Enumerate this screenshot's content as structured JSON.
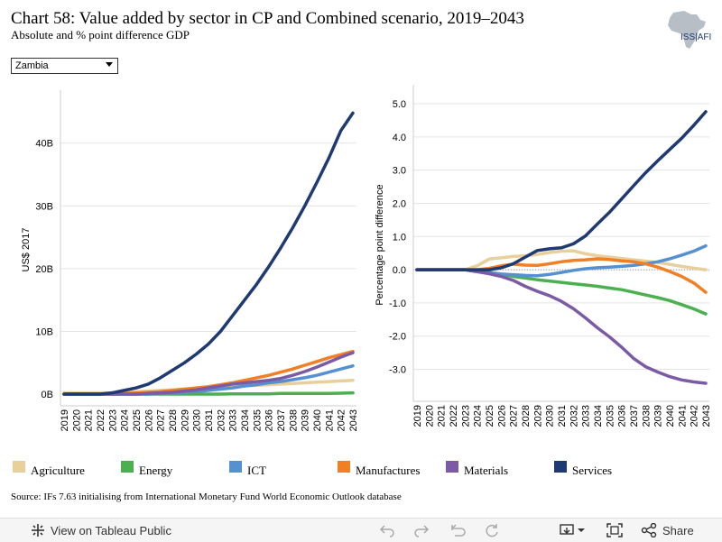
{
  "header": {
    "title": "Chart 58: Value added by sector in CP and Combined scenario, 2019–2043",
    "subtitle": "Absolute and % point difference GDP",
    "logo_text": "ISS|AFI"
  },
  "filter": {
    "country": "Zambia"
  },
  "colors": {
    "Agriculture": "#e8cf9b",
    "Energy": "#4caf50",
    "ICT": "#5591d1",
    "Manufactures": "#f07f26",
    "Materials": "#7b5aa6",
    "Services": "#1f3a73"
  },
  "legend": [
    "Agriculture",
    "Energy",
    "ICT",
    "Manufactures",
    "Materials",
    "Services"
  ],
  "source": "Source: IFs 7.63 initialising from International Monetary Fund World Economic Outlook database",
  "toolbar": {
    "view_label": "View on Tableau Public",
    "share_label": "Share"
  },
  "chart_data": [
    {
      "type": "line",
      "title": "",
      "xlabel": "",
      "ylabel": "US$ 2017",
      "x": [
        "2019",
        "2020",
        "2021",
        "2022",
        "2023",
        "2024",
        "2025",
        "2026",
        "2027",
        "2028",
        "2029",
        "2030",
        "2031",
        "2032",
        "2033",
        "2034",
        "2035",
        "2036",
        "2037",
        "2038",
        "2039",
        "2040",
        "2041",
        "2042",
        "2043"
      ],
      "ylim": [
        -1,
        47
      ],
      "yticks": [
        0,
        10,
        20,
        30,
        40
      ],
      "ytick_labels": [
        "0B",
        "10B",
        "20B",
        "30B",
        "40B"
      ],
      "gridlines": true,
      "series": [
        {
          "name": "Agriculture",
          "values": [
            0.2,
            0.2,
            0.2,
            0.2,
            0.2,
            0.3,
            0.4,
            0.5,
            0.6,
            0.7,
            0.8,
            0.9,
            1.0,
            1.1,
            1.2,
            1.3,
            1.4,
            1.5,
            1.6,
            1.7,
            1.8,
            1.9,
            2.0,
            2.1,
            2.2
          ]
        },
        {
          "name": "Energy",
          "values": [
            0.0,
            0.0,
            0.0,
            0.0,
            0.0,
            0.0,
            0.0,
            0.0,
            0.0,
            0.0,
            0.0,
            0.0,
            0.0,
            0.0,
            0.05,
            0.05,
            0.05,
            0.05,
            0.1,
            0.1,
            0.1,
            0.1,
            0.1,
            0.15,
            0.2
          ]
        },
        {
          "name": "ICT",
          "values": [
            0.0,
            0.0,
            0.0,
            0.0,
            0.0,
            0.0,
            0.0,
            0.0,
            0.1,
            0.2,
            0.3,
            0.4,
            0.6,
            0.8,
            1.0,
            1.3,
            1.5,
            1.8,
            2.0,
            2.3,
            2.6,
            3.0,
            3.5,
            4.0,
            4.5
          ]
        },
        {
          "name": "Manufactures",
          "values": [
            0.0,
            0.0,
            0.0,
            0.0,
            0.0,
            0.1,
            0.2,
            0.3,
            0.4,
            0.6,
            0.8,
            1.0,
            1.2,
            1.5,
            1.8,
            2.2,
            2.6,
            3.0,
            3.5,
            4.0,
            4.6,
            5.2,
            5.8,
            6.3,
            6.8
          ]
        },
        {
          "name": "Materials",
          "values": [
            0.0,
            0.0,
            0.0,
            0.0,
            0.0,
            0.0,
            0.0,
            0.1,
            0.2,
            0.3,
            0.5,
            0.7,
            1.0,
            1.3,
            1.6,
            1.8,
            2.0,
            2.2,
            2.5,
            3.0,
            3.6,
            4.3,
            5.1,
            5.9,
            6.6
          ]
        },
        {
          "name": "Services",
          "values": [
            0.0,
            0.0,
            0.0,
            0.0,
            0.2,
            0.6,
            1.0,
            1.6,
            2.6,
            3.8,
            5.0,
            6.4,
            8.0,
            10.0,
            12.5,
            15.0,
            17.5,
            20.3,
            23.3,
            26.5,
            30.0,
            33.7,
            37.6,
            42.0,
            44.8
          ]
        }
      ]
    },
    {
      "type": "line",
      "title": "",
      "xlabel": "",
      "ylabel": "Percentage point difference",
      "x": [
        "2019",
        "2020",
        "2021",
        "2022",
        "2023",
        "2024",
        "2025",
        "2026",
        "2027",
        "2028",
        "2029",
        "2030",
        "2031",
        "2032",
        "2033",
        "2034",
        "2035",
        "2036",
        "2037",
        "2038",
        "2039",
        "2040",
        "2041",
        "2042",
        "2043"
      ],
      "ylim": [
        -3.8,
        5.3
      ],
      "yticks": [
        -3,
        -2,
        -1,
        0,
        1,
        2,
        3,
        4,
        5
      ],
      "ytick_labels": [
        "-3.0",
        "-2.0",
        "-1.0",
        "0.0",
        "1.0",
        "2.0",
        "3.0",
        "4.0",
        "5.0"
      ],
      "gridlines": true,
      "reference_line": 0,
      "series": [
        {
          "name": "Agriculture",
          "values": [
            0.0,
            0.0,
            0.0,
            0.0,
            0.0,
            0.12,
            0.32,
            0.36,
            0.4,
            0.42,
            0.46,
            0.52,
            0.56,
            0.57,
            0.48,
            0.42,
            0.38,
            0.34,
            0.3,
            0.26,
            0.22,
            0.16,
            0.1,
            0.05,
            0.0
          ]
        },
        {
          "name": "Energy",
          "values": [
            0.0,
            0.0,
            0.0,
            0.0,
            0.0,
            -0.04,
            -0.08,
            -0.13,
            -0.2,
            -0.25,
            -0.3,
            -0.34,
            -0.38,
            -0.42,
            -0.46,
            -0.5,
            -0.55,
            -0.6,
            -0.68,
            -0.76,
            -0.84,
            -0.93,
            -1.05,
            -1.18,
            -1.33
          ]
        },
        {
          "name": "ICT",
          "values": [
            0.0,
            0.0,
            0.0,
            0.0,
            0.0,
            -0.06,
            -0.1,
            -0.13,
            -0.15,
            -0.17,
            -0.18,
            -0.14,
            -0.08,
            -0.02,
            0.03,
            0.06,
            0.08,
            0.1,
            0.13,
            0.18,
            0.24,
            0.33,
            0.44,
            0.56,
            0.72
          ]
        },
        {
          "name": "Manufactures",
          "values": [
            0.0,
            0.0,
            0.0,
            0.0,
            0.0,
            0.0,
            0.04,
            0.12,
            0.17,
            0.14,
            0.13,
            0.18,
            0.24,
            0.28,
            0.3,
            0.33,
            0.31,
            0.27,
            0.24,
            0.18,
            0.08,
            -0.05,
            -0.2,
            -0.4,
            -0.68
          ]
        },
        {
          "name": "Materials",
          "values": [
            0.0,
            0.0,
            0.0,
            0.0,
            0.0,
            -0.06,
            -0.12,
            -0.2,
            -0.32,
            -0.5,
            -0.65,
            -0.78,
            -0.95,
            -1.17,
            -1.45,
            -1.75,
            -2.02,
            -2.33,
            -2.67,
            -2.92,
            -3.08,
            -3.22,
            -3.32,
            -3.38,
            -3.42
          ]
        },
        {
          "name": "Services",
          "values": [
            0.0,
            0.0,
            0.0,
            0.0,
            0.0,
            0.0,
            0.0,
            0.06,
            0.18,
            0.38,
            0.58,
            0.63,
            0.66,
            0.78,
            1.02,
            1.38,
            1.73,
            2.13,
            2.53,
            2.92,
            3.28,
            3.62,
            3.96,
            4.35,
            4.76
          ]
        }
      ]
    }
  ]
}
